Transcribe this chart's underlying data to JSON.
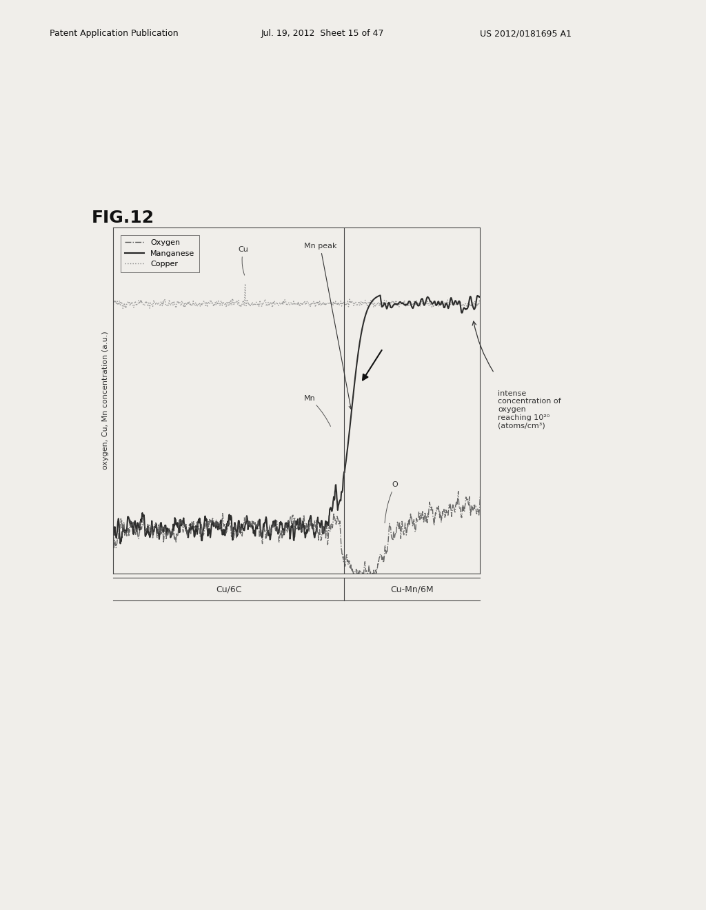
{
  "fig_label": "FIG.12",
  "header_left": "Patent Application Publication",
  "header_mid": "Jul. 19, 2012  Sheet 15 of 47",
  "header_right": "US 2012/0181695 A1",
  "ylabel": "oxygen, Cu, Mn concentration (a.u.)",
  "region_labels": [
    "Cu/6C",
    "Cu-Mn/6M"
  ],
  "legend_entries": [
    "Oxygen",
    "Manganese",
    "Copper"
  ],
  "annotation_cu": "Cu",
  "annotation_mn_label": "Mn",
  "annotation_mn_peak": "Mn peak",
  "annotation_o": "O",
  "annotation_intense": "intense\nconcentration of\noxygen\nreaching 10²⁰\n(atoms/cm³)",
  "background_color": "#f0eeea",
  "plot_bg": "#f0eeea",
  "line_color_oxygen": "#555555",
  "line_color_manganese": "#111111",
  "line_color_copper": "#888888",
  "header_fontsize": 9,
  "fig_label_fontsize": 18
}
